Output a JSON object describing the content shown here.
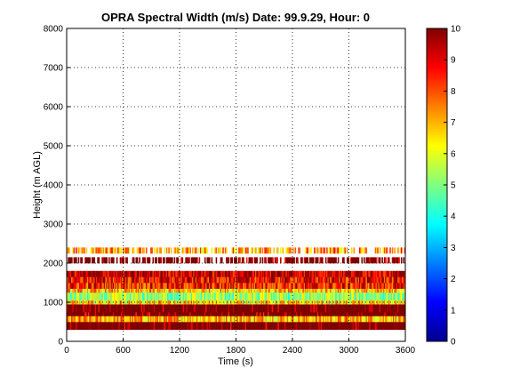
{
  "chart_data": {
    "type": "heatmap",
    "title": "OPRA Spectral Width (m/s)  Date: 99.9.29, Hour: 0",
    "xlabel": "Time (s)",
    "ylabel": "Height (m AGL)",
    "xlim": [
      0,
      3600
    ],
    "ylim": [
      0,
      8000
    ],
    "xticks": [
      0,
      600,
      1200,
      1800,
      2400,
      3000,
      3600
    ],
    "yticks": [
      0,
      1000,
      2000,
      3000,
      4000,
      5000,
      6000,
      7000,
      8000
    ],
    "grid": true,
    "colorbar": {
      "colormap": "jet",
      "min": 0,
      "max": 10,
      "ticks": [
        0,
        1,
        2,
        3,
        4,
        5,
        6,
        7,
        8,
        9,
        10
      ]
    },
    "bands": [
      {
        "y0": 300,
        "y1": 500,
        "value": 9.8
      },
      {
        "y0": 500,
        "y1": 650,
        "value": 7.0
      },
      {
        "y0": 650,
        "y1": 750,
        "value": 9.6
      },
      {
        "y0": 750,
        "y1": 950,
        "value": 9.9
      },
      {
        "y0": 950,
        "y1": 1050,
        "value": 6.5
      },
      {
        "y0": 1050,
        "y1": 1250,
        "value": 5.2
      },
      {
        "y0": 1250,
        "y1": 1350,
        "value": 6.8
      },
      {
        "y0": 1350,
        "y1": 1500,
        "value": 8.5
      },
      {
        "y0": 1500,
        "y1": 1650,
        "value": 8.8
      },
      {
        "y0": 1650,
        "y1": 1800,
        "value": 9.4
      },
      {
        "y0": 2000,
        "y1": 2150,
        "value": 9.7
      },
      {
        "y0": 2250,
        "y1": 2400,
        "value": 7.2
      }
    ]
  }
}
